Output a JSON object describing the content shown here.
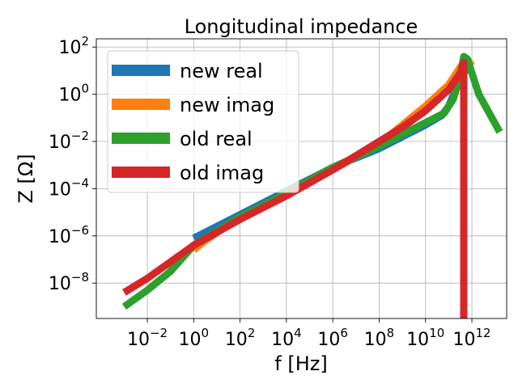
{
  "chart_data": {
    "type": "line",
    "title": "Longitudinal impedance",
    "xlabel": "f [Hz]",
    "ylabel": "Z [Ω]",
    "x_scale": "log",
    "y_scale": "log",
    "xlim_exp": [
      -4.2,
      13.5
    ],
    "ylim_exp": [
      -9.5,
      2.35
    ],
    "grid": true,
    "legend_position": "top-left",
    "x_ticks": [
      {
        "base": "10",
        "exp": "−2",
        "value": -2
      },
      {
        "base": "10",
        "exp": "0",
        "value": 0
      },
      {
        "base": "10",
        "exp": "2",
        "value": 2
      },
      {
        "base": "10",
        "exp": "4",
        "value": 4
      },
      {
        "base": "10",
        "exp": "6",
        "value": 6
      },
      {
        "base": "10",
        "exp": "8",
        "value": 8
      },
      {
        "base": "10",
        "exp": "10",
        "value": 10
      },
      {
        "base": "10",
        "exp": "12",
        "value": 12
      }
    ],
    "y_ticks": [
      {
        "base": "10",
        "exp": "−8",
        "value": -8
      },
      {
        "base": "10",
        "exp": "−6",
        "value": -6
      },
      {
        "base": "10",
        "exp": "−4",
        "value": -4
      },
      {
        "base": "10",
        "exp": "−2",
        "value": -2
      },
      {
        "base": "10",
        "exp": "0",
        "value": 0
      },
      {
        "base": "10",
        "exp": "2",
        "value": 2
      }
    ],
    "series": [
      {
        "name": "new real",
        "color": "#1f77b4",
        "points_log10": [
          [
            0,
            -6.1
          ],
          [
            2,
            -5.1
          ],
          [
            4,
            -4.1
          ],
          [
            6,
            -3.1
          ],
          [
            8,
            -2.3
          ],
          [
            9,
            -1.8
          ],
          [
            10,
            -1.3
          ],
          [
            10.7,
            -0.9
          ],
          [
            11,
            -0.5
          ],
          [
            11.3,
            0.2
          ],
          [
            11.6,
            0.9
          ],
          [
            12,
            1.2
          ]
        ]
      },
      {
        "name": "new imag",
        "color": "#ff7f0e",
        "points_log10": [
          [
            0,
            -6.6
          ],
          [
            0.5,
            -6.2
          ],
          [
            2,
            -5.2
          ],
          [
            4,
            -4.3
          ],
          [
            6,
            -3.2
          ],
          [
            8,
            -2.1
          ],
          [
            9,
            -1.3
          ],
          [
            10,
            -0.5
          ],
          [
            11,
            0.4
          ],
          [
            11.6,
            1.3
          ],
          [
            11.8,
            1.5
          ],
          [
            12,
            1.2
          ]
        ]
      },
      {
        "name": "old real",
        "color": "#2ca02c",
        "points_log10": [
          [
            -3,
            -9.0
          ],
          [
            -2,
            -8.3
          ],
          [
            -1,
            -7.5
          ],
          [
            0,
            -6.4
          ],
          [
            2,
            -5.2
          ],
          [
            4,
            -4.2
          ],
          [
            6,
            -3.1
          ],
          [
            8,
            -2.2
          ],
          [
            9,
            -1.7
          ],
          [
            10,
            -1.2
          ],
          [
            10.8,
            -0.8
          ],
          [
            11.2,
            -0.2
          ],
          [
            11.5,
            0.8
          ],
          [
            11.65,
            1.6
          ],
          [
            11.8,
            1.5
          ],
          [
            12.3,
            0.0
          ],
          [
            13.2,
            -1.6
          ]
        ]
      },
      {
        "name": "old imag",
        "color": "#d62728",
        "points_log10": [
          [
            -3,
            -8.4
          ],
          [
            -2,
            -7.8
          ],
          [
            -1,
            -7.1
          ],
          [
            0,
            -6.4
          ],
          [
            2,
            -5.3
          ],
          [
            4,
            -4.3
          ],
          [
            6,
            -3.2
          ],
          [
            8,
            -2.0
          ],
          [
            9,
            -1.4
          ],
          [
            10,
            -0.7
          ],
          [
            11,
            0.2
          ],
          [
            11.5,
            0.9
          ],
          [
            11.65,
            1.35
          ],
          [
            11.65,
            -9.6
          ]
        ]
      }
    ]
  }
}
